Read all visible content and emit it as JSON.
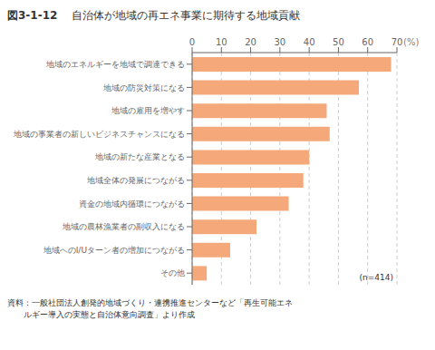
{
  "chart_data": {
    "type": "bar",
    "orientation": "horizontal",
    "title": "図3-1-12",
    "subtitle": "　自治体が地域の再エネ事業に期待する地域貢献",
    "xlabel": "(%)",
    "categories": [
      "地域のエネルギーを地域で調達できる",
      "地域の防災対策になる",
      "地域の雇用を増やす",
      "地域の事業者の新しいビジネスチャンスになる",
      "地域の新たな産業となる",
      "地域全体の発展につながる",
      "資金の地域内循環につながる",
      "地域の農林漁業者の副収入になる",
      "地域へのI/Uターン者の増加につながる",
      "その他"
    ],
    "values": [
      68,
      57,
      46,
      47,
      40,
      38,
      33,
      22,
      13,
      5
    ],
    "color": "#F5A87A",
    "xlim": [
      0,
      70
    ],
    "xticks": [
      0,
      10,
      20,
      30,
      40,
      50,
      60,
      70
    ],
    "grid": true,
    "annotations": [
      "(n=414)",
      "資料：一般社団法人創発的地域づくり・連携推進センターなど「再生可能エネ",
      "　　ルギー導入の実態と自治体意向調査」より作成"
    ]
  }
}
